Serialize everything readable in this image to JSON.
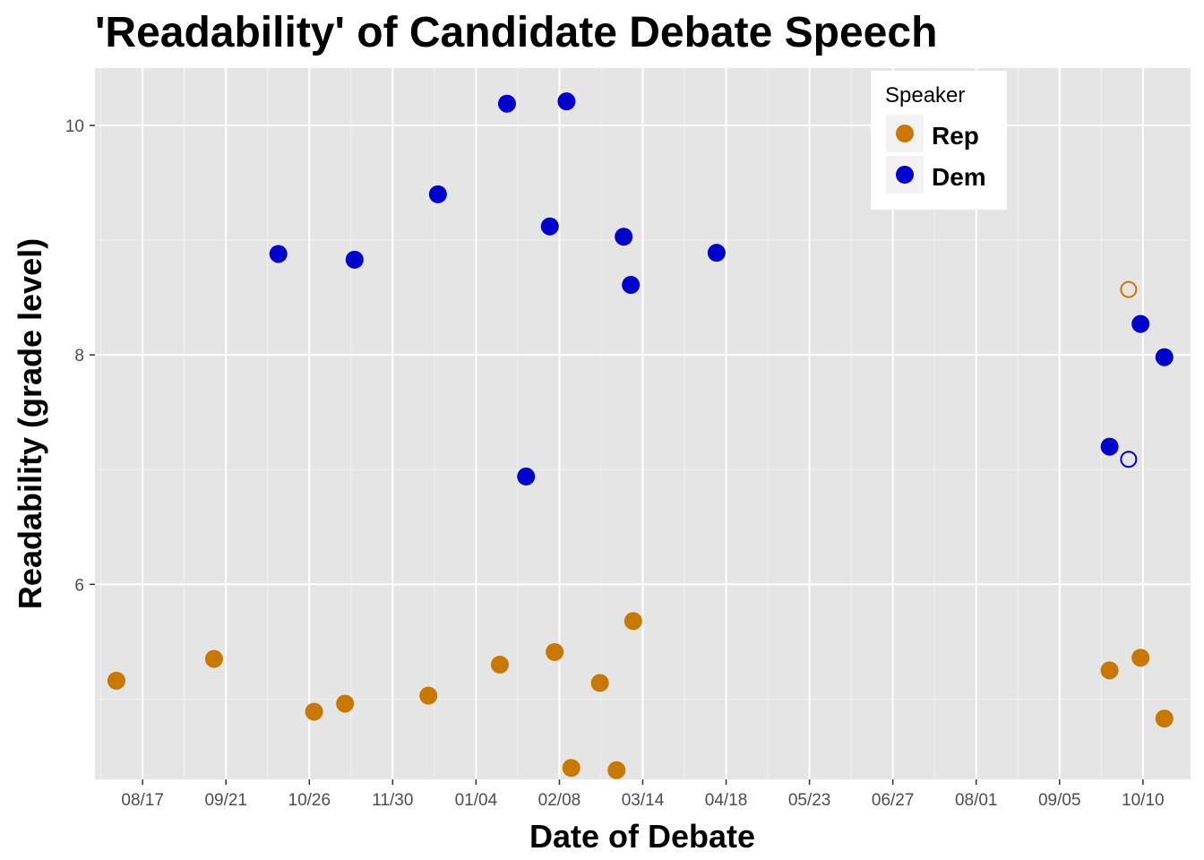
{
  "chart_data": {
    "type": "scatter",
    "title": "'Readability' of Candidate Debate Speech",
    "xlabel": "Date of Debate",
    "ylabel": "Readability (grade level)",
    "x_ticks": [
      "08/17",
      "09/21",
      "10/26",
      "11/30",
      "01/04",
      "02/08",
      "03/14",
      "04/18",
      "05/23",
      "06/27",
      "08/01",
      "09/05",
      "10/10"
    ],
    "x_tick_dates": [
      "2015-08-17",
      "2015-09-21",
      "2015-10-26",
      "2015-11-30",
      "2016-01-04",
      "2016-02-08",
      "2016-03-14",
      "2016-04-18",
      "2016-05-23",
      "2016-06-27",
      "2016-08-01",
      "2016-09-05",
      "2016-10-10"
    ],
    "xlim": [
      "2015-07-28",
      "2016-10-30"
    ],
    "y_ticks": [
      6,
      8,
      10
    ],
    "ylim": [
      4.3,
      10.5
    ],
    "grid": true,
    "panel_background": "#e5e5e5",
    "legend": {
      "title": "Speaker",
      "position": "top-right",
      "entries": [
        {
          "label": "Rep",
          "color": "#c87800"
        },
        {
          "label": "Dem",
          "color": "#0000cc"
        }
      ]
    },
    "series": [
      {
        "name": "Rep",
        "color": "#c87800",
        "points": [
          {
            "x": "2015-08-06",
            "y": 5.16
          },
          {
            "x": "2015-09-16",
            "y": 5.35
          },
          {
            "x": "2015-10-28",
            "y": 4.89
          },
          {
            "x": "2015-11-10",
            "y": 4.96
          },
          {
            "x": "2015-12-15",
            "y": 5.03
          },
          {
            "x": "2016-01-14",
            "y": 5.3
          },
          {
            "x": "2016-02-06",
            "y": 5.41
          },
          {
            "x": "2016-02-13",
            "y": 4.4
          },
          {
            "x": "2016-02-25",
            "y": 5.14
          },
          {
            "x": "2016-03-03",
            "y": 4.38
          },
          {
            "x": "2016-03-10",
            "y": 5.68
          },
          {
            "x": "2016-09-26",
            "y": 5.25
          },
          {
            "x": "2016-10-04",
            "y": 8.57,
            "hollow": true
          },
          {
            "x": "2016-10-09",
            "y": 5.36
          },
          {
            "x": "2016-10-19",
            "y": 4.83
          }
        ]
      },
      {
        "name": "Dem",
        "color": "#0000cc",
        "points": [
          {
            "x": "2015-10-13",
            "y": 8.88
          },
          {
            "x": "2015-11-14",
            "y": 8.83
          },
          {
            "x": "2015-12-19",
            "y": 9.4
          },
          {
            "x": "2016-01-17",
            "y": 10.19
          },
          {
            "x": "2016-01-25",
            "y": 6.94
          },
          {
            "x": "2016-02-04",
            "y": 9.12
          },
          {
            "x": "2016-02-11",
            "y": 10.21
          },
          {
            "x": "2016-03-06",
            "y": 9.03
          },
          {
            "x": "2016-03-09",
            "y": 8.61
          },
          {
            "x": "2016-04-14",
            "y": 8.89
          },
          {
            "x": "2016-09-26",
            "y": 7.2
          },
          {
            "x": "2016-10-04",
            "y": 7.09,
            "hollow": true
          },
          {
            "x": "2016-10-09",
            "y": 8.27
          },
          {
            "x": "2016-10-19",
            "y": 7.98
          }
        ]
      }
    ]
  }
}
